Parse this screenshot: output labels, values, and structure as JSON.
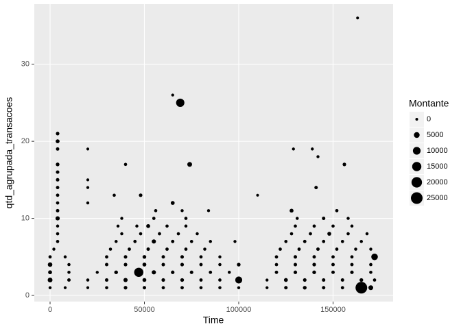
{
  "chart_data": {
    "type": "scatter",
    "x_label": "Time",
    "y_label": "qtd_agrupada_transacoes",
    "legend_title": "Montante",
    "size_breaks": [
      0,
      5000,
      10000,
      15000,
      20000,
      25000
    ],
    "color": "#000000",
    "grid": true,
    "legend_position": "right",
    "xlim": [
      -8364,
      181818
    ],
    "ylim": [
      -0.8,
      37.8
    ],
    "xticks": [
      0,
      50000,
      100000,
      150000
    ],
    "yticks": [
      0,
      10,
      20,
      30
    ],
    "points": [
      [
        0,
        1,
        300
      ],
      [
        8000,
        1,
        200
      ],
      [
        20000,
        1,
        150
      ],
      [
        30000,
        1,
        500
      ],
      [
        40000,
        1,
        1000
      ],
      [
        50000,
        1,
        800
      ],
      [
        60000,
        1,
        600
      ],
      [
        70000,
        1,
        700
      ],
      [
        80000,
        1,
        500
      ],
      [
        90000,
        1,
        400
      ],
      [
        100000,
        1,
        300
      ],
      [
        115000,
        1,
        200
      ],
      [
        125000,
        1,
        900
      ],
      [
        135000,
        1,
        1200
      ],
      [
        145000,
        1,
        800
      ],
      [
        155000,
        1,
        600
      ],
      [
        165000,
        1,
        25000
      ],
      [
        170000,
        1,
        3000
      ],
      [
        0,
        2,
        3000
      ],
      [
        10000,
        2,
        800
      ],
      [
        20000,
        2,
        500
      ],
      [
        30000,
        2,
        900
      ],
      [
        40000,
        2,
        2000
      ],
      [
        50000,
        2,
        1500
      ],
      [
        60000,
        2,
        1000
      ],
      [
        70000,
        2,
        1200
      ],
      [
        80000,
        2,
        700
      ],
      [
        90000,
        2,
        600
      ],
      [
        100000,
        2,
        8000
      ],
      [
        115000,
        2,
        300
      ],
      [
        125000,
        2,
        1500
      ],
      [
        135000,
        2,
        1000
      ],
      [
        145000,
        2,
        900
      ],
      [
        155000,
        2,
        800
      ],
      [
        165000,
        2,
        1200
      ],
      [
        172000,
        2,
        600
      ],
      [
        0,
        3,
        1500
      ],
      [
        10000,
        3,
        400
      ],
      [
        25000,
        3,
        300
      ],
      [
        35000,
        3,
        1200
      ],
      [
        47000,
        3,
        15000
      ],
      [
        55000,
        3,
        2000
      ],
      [
        65000,
        3,
        1000
      ],
      [
        75000,
        3,
        900
      ],
      [
        85000,
        3,
        600
      ],
      [
        95000,
        3,
        400
      ],
      [
        120000,
        3,
        700
      ],
      [
        130000,
        3,
        1000
      ],
      [
        140000,
        3,
        1200
      ],
      [
        150000,
        3,
        800
      ],
      [
        160000,
        3,
        900
      ],
      [
        170000,
        3,
        500
      ],
      [
        0,
        4,
        2500
      ],
      [
        10000,
        4,
        500
      ],
      [
        30000,
        4,
        800
      ],
      [
        40000,
        4,
        1000
      ],
      [
        50000,
        4,
        1500
      ],
      [
        60000,
        4,
        900
      ],
      [
        70000,
        4,
        1000
      ],
      [
        80000,
        4,
        700
      ],
      [
        90000,
        4,
        500
      ],
      [
        100000,
        4,
        1200
      ],
      [
        120000,
        4,
        600
      ],
      [
        130000,
        4,
        900
      ],
      [
        140000,
        4,
        1100
      ],
      [
        150000,
        4,
        800
      ],
      [
        160000,
        4,
        700
      ],
      [
        170000,
        4,
        600
      ],
      [
        0,
        5,
        600
      ],
      [
        8000,
        5,
        400
      ],
      [
        30000,
        5,
        700
      ],
      [
        40000,
        5,
        900
      ],
      [
        50000,
        5,
        1200
      ],
      [
        60000,
        5,
        800
      ],
      [
        70000,
        5,
        900
      ],
      [
        80000,
        5,
        600
      ],
      [
        90000,
        5,
        400
      ],
      [
        120000,
        5,
        700
      ],
      [
        130000,
        5,
        900
      ],
      [
        140000,
        5,
        800
      ],
      [
        150000,
        5,
        700
      ],
      [
        160000,
        5,
        600
      ],
      [
        172000,
        5,
        7000
      ],
      [
        2000,
        6,
        400
      ],
      [
        32000,
        6,
        500
      ],
      [
        42000,
        6,
        700
      ],
      [
        52000,
        6,
        800
      ],
      [
        62000,
        6,
        700
      ],
      [
        72000,
        6,
        600
      ],
      [
        82000,
        6,
        500
      ],
      [
        122000,
        6,
        600
      ],
      [
        132000,
        6,
        700
      ],
      [
        142000,
        6,
        800
      ],
      [
        152000,
        6,
        600
      ],
      [
        162000,
        6,
        500
      ],
      [
        170000,
        6,
        400
      ],
      [
        4000,
        7,
        500
      ],
      [
        35000,
        7,
        400
      ],
      [
        45000,
        7,
        600
      ],
      [
        55000,
        7,
        2000
      ],
      [
        65000,
        7,
        700
      ],
      [
        75000,
        7,
        500
      ],
      [
        85000,
        7,
        400
      ],
      [
        98000,
        7,
        300
      ],
      [
        125000,
        7,
        500
      ],
      [
        135000,
        7,
        700
      ],
      [
        145000,
        7,
        600
      ],
      [
        155000,
        7,
        500
      ],
      [
        165000,
        7,
        400
      ],
      [
        4000,
        8,
        500
      ],
      [
        38000,
        8,
        400
      ],
      [
        48000,
        8,
        500
      ],
      [
        58000,
        8,
        600
      ],
      [
        68000,
        8,
        500
      ],
      [
        78000,
        8,
        400
      ],
      [
        128000,
        8,
        500
      ],
      [
        138000,
        8,
        600
      ],
      [
        148000,
        8,
        1500
      ],
      [
        158000,
        8,
        500
      ],
      [
        168000,
        8,
        400
      ],
      [
        4000,
        9,
        400
      ],
      [
        36000,
        9,
        300
      ],
      [
        46000,
        9,
        400
      ],
      [
        52000,
        9,
        1500
      ],
      [
        62000,
        9,
        500
      ],
      [
        72000,
        9,
        400
      ],
      [
        130000,
        9,
        500
      ],
      [
        140000,
        9,
        600
      ],
      [
        150000,
        9,
        500
      ],
      [
        160000,
        9,
        400
      ],
      [
        4000,
        10,
        2000
      ],
      [
        38000,
        10,
        300
      ],
      [
        55000,
        10,
        600
      ],
      [
        72000,
        10,
        500
      ],
      [
        131000,
        10,
        400
      ],
      [
        145000,
        10,
        800
      ],
      [
        158000,
        10,
        400
      ],
      [
        4000,
        11,
        800
      ],
      [
        56000,
        11,
        500
      ],
      [
        70000,
        11,
        400
      ],
      [
        84000,
        11,
        300
      ],
      [
        128000,
        11,
        1500
      ],
      [
        152000,
        11,
        600
      ],
      [
        163000,
        36,
        100
      ],
      [
        65000,
        26,
        200
      ],
      [
        69000,
        25,
        12000
      ],
      [
        74000,
        17,
        3000
      ],
      [
        40000,
        17,
        500
      ],
      [
        4000,
        21,
        1000
      ],
      [
        4000,
        20,
        1500
      ],
      [
        4000,
        19,
        800
      ],
      [
        4000,
        17,
        1200
      ],
      [
        4000,
        16,
        900
      ],
      [
        4000,
        15,
        900
      ],
      [
        4000,
        14,
        700
      ],
      [
        4000,
        13,
        700
      ],
      [
        4000,
        12,
        600
      ],
      [
        20000,
        19,
        100
      ],
      [
        20000,
        15,
        200
      ],
      [
        20000,
        14,
        200
      ],
      [
        20000,
        12,
        300
      ],
      [
        129000,
        19,
        300
      ],
      [
        139000,
        19,
        300
      ],
      [
        142000,
        18,
        300
      ],
      [
        156000,
        17,
        1000
      ],
      [
        110000,
        13,
        100
      ],
      [
        48000,
        13,
        1000
      ],
      [
        34000,
        13,
        500
      ],
      [
        141000,
        14,
        800
      ],
      [
        65000,
        12,
        1500
      ]
    ]
  }
}
